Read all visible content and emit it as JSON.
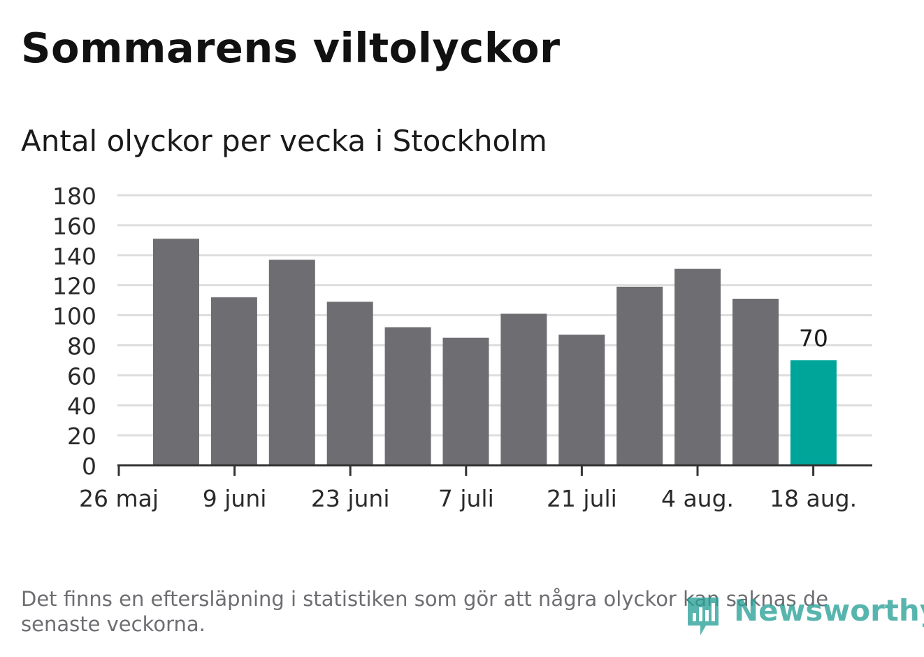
{
  "title": "Sommarens viltolyckor",
  "subtitle": "Antal olyckor per vecka i Stockholm",
  "note": "Det finns en eftersläpning i statistiken som gör att några olyckor kan saknas de senaste veckorna.",
  "brand": {
    "name": "Newsworthy",
    "color": "#2aa198",
    "icon": "bar-chart-speech-icon"
  },
  "colors": {
    "bar": "#6e6d72",
    "highlight": "#00a59a",
    "grid": "#dedede",
    "axis": "#333333"
  },
  "chart_data": {
    "type": "bar",
    "title": "Sommarens viltolyckor",
    "subtitle": "Antal olyckor per vecka i Stockholm",
    "xlabel": "",
    "ylabel": "",
    "x_tick_labels": [
      "26 maj",
      "9 juni",
      "23 juni",
      "7 juli",
      "21 juli",
      "4 aug.",
      "18 aug."
    ],
    "values": [
      151,
      112,
      137,
      109,
      92,
      85,
      101,
      87,
      119,
      131,
      111,
      70
    ],
    "highlight_index": 11,
    "data_labels": [
      {
        "index": 11,
        "text": "70"
      }
    ],
    "ylim": [
      0,
      180
    ],
    "y_ticks": [
      0,
      20,
      40,
      60,
      80,
      100,
      120,
      140,
      160,
      180
    ],
    "grid": true,
    "legend": "none"
  }
}
